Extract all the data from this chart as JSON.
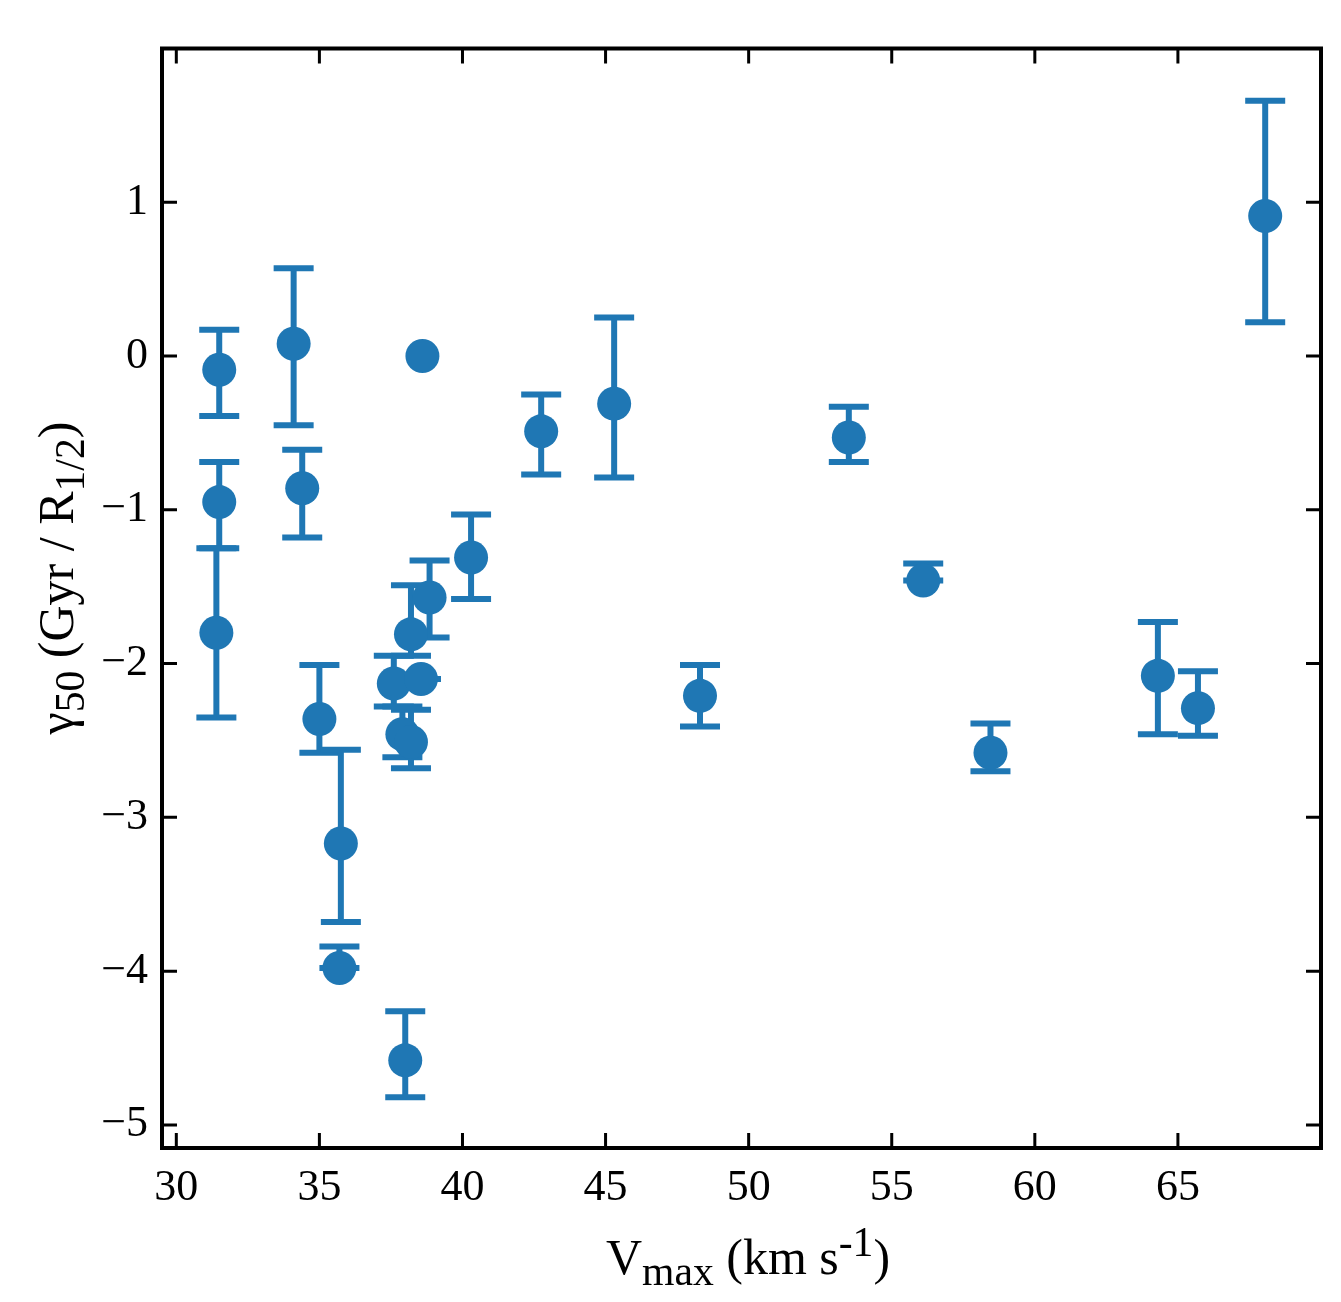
{
  "chart_data": {
    "type": "scatter",
    "xlabel": "V$_{max}$ (km s$^{-1}$)",
    "ylabel": "γ$_{50}$ (Gyr / R$_{1/2}$)",
    "x": [
      31.5,
      31.5,
      31.4,
      34.1,
      34.4,
      35.0,
      35.75,
      35.7,
      38.0,
      38.6,
      40.3,
      42.75,
      45.3,
      48.3,
      53.5,
      56.1,
      58.45,
      64.3,
      65.7,
      68.05,
      38.85,
      38.2,
      37.6,
      38.55,
      37.9,
      38.2
    ],
    "series": [
      {
        "color": "#1f77b4",
        "values": [
          -0.09,
          -0.95,
          -1.8,
          0.08,
          -0.86,
          -2.36,
          -3.17,
          -3.98,
          -4.58,
          0.0,
          -1.31,
          -0.49,
          -0.31,
          -2.21,
          -0.53,
          -1.46,
          -2.58,
          -2.08,
          -2.29,
          0.91,
          -1.57,
          -1.81,
          -2.13,
          -2.1,
          -2.46,
          -2.51
        ],
        "errors": [
          [
            -0.39,
            0.17
          ],
          [
            -1.25,
            -0.69
          ],
          [
            -2.35,
            -1.25
          ],
          [
            -0.45,
            0.57
          ],
          [
            -1.18,
            -0.61
          ],
          [
            -2.58,
            -2.01
          ],
          [
            -3.68,
            -2.56
          ],
          [
            -3.98,
            -3.84
          ],
          [
            -4.82,
            -4.26
          ],
          null,
          [
            -1.58,
            -1.03
          ],
          [
            -0.77,
            -0.25
          ],
          [
            -0.79,
            0.25
          ],
          [
            -2.41,
            -2.01
          ],
          [
            -0.69,
            -0.33
          ],
          [
            -1.46,
            -1.35
          ],
          [
            -2.7,
            -2.39
          ],
          [
            -2.46,
            -1.73
          ],
          [
            -2.47,
            -2.05
          ],
          [
            0.22,
            1.66
          ],
          [
            -1.83,
            -1.33
          ],
          [
            -1.95,
            -1.49
          ],
          [
            -2.28,
            -1.95
          ],
          [
            -2.1,
            -2.1
          ],
          [
            -2.61,
            -2.28
          ],
          [
            -2.68,
            -2.3
          ]
        ]
      }
    ],
    "xlim": [
      29.5,
      70
    ],
    "ylim": [
      -5.15,
      2
    ],
    "xticks": [
      30,
      35,
      40,
      45,
      50,
      55,
      60,
      65
    ],
    "yticks": [
      {
        "value": -5,
        "label": "−5"
      },
      {
        "value": -4,
        "label": "−4"
      },
      {
        "value": -3,
        "label": "−3"
      },
      {
        "value": -2,
        "label": "−2"
      },
      {
        "value": -1,
        "label": "−1"
      },
      0,
      1
    ],
    "marker": "circle",
    "grid": false,
    "legend": false
  }
}
